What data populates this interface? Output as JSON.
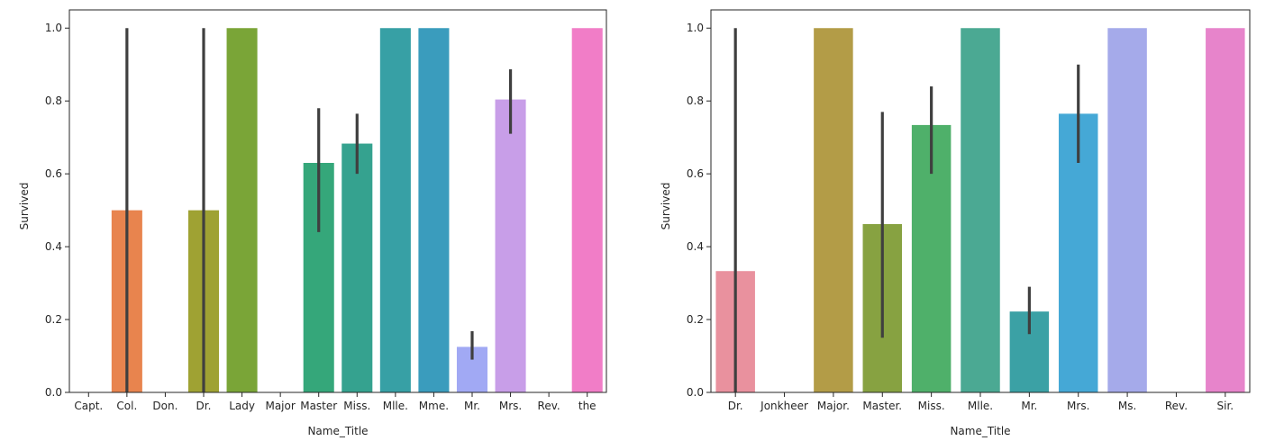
{
  "chart_data": [
    {
      "type": "bar",
      "xlabel": "Name_Title",
      "ylabel": "Survived",
      "ylim": [
        0,
        1.05
      ],
      "yticks": [
        "0.0",
        "0.2",
        "0.4",
        "0.6",
        "0.8",
        "1.0"
      ],
      "categories": [
        "Capt.",
        "Col.",
        "Don.",
        "Dr.",
        "Lady",
        "Major",
        "Master",
        "Miss.",
        "Mlle.",
        "Mme.",
        "Mr.",
        "Mrs.",
        "Rev.",
        "the"
      ],
      "values": [
        0.0,
        0.5,
        0.0,
        0.5,
        1.0,
        0.0,
        0.63,
        0.683,
        1.0,
        1.0,
        0.125,
        0.804,
        0.0,
        1.0
      ],
      "ci_low": [
        null,
        0.0,
        null,
        0.0,
        null,
        null,
        0.44,
        0.6,
        null,
        null,
        0.09,
        0.71,
        null,
        null
      ],
      "ci_high": [
        null,
        1.0,
        null,
        1.0,
        null,
        null,
        0.78,
        0.765,
        null,
        null,
        0.168,
        0.887,
        null,
        null
      ],
      "colors": [
        "#f77189",
        "#e8844e",
        "#c69532",
        "#9fa233",
        "#7aa537",
        "#51a93c",
        "#35a77a",
        "#35a28f",
        "#37a0a5",
        "#3a9cbd",
        "#a1a9f4",
        "#c89ee8",
        "#e48dcd",
        "#f17dc7"
      ]
    },
    {
      "type": "bar",
      "xlabel": "Name_Title",
      "ylabel": "Survived",
      "ylim": [
        0,
        1.05
      ],
      "yticks": [
        "0.0",
        "0.2",
        "0.4",
        "0.6",
        "0.8",
        "1.0"
      ],
      "categories": [
        "Dr.",
        "Jonkheer",
        "Major.",
        "Master.",
        "Miss.",
        "Mlle.",
        "Mr.",
        "Mrs.",
        "Ms.",
        "Rev.",
        "Sir."
      ],
      "values": [
        0.333,
        0.0,
        1.0,
        0.462,
        0.734,
        1.0,
        0.222,
        0.765,
        1.0,
        0.0,
        1.0
      ],
      "ci_low": [
        0.0,
        null,
        null,
        0.15,
        0.6,
        null,
        0.16,
        0.63,
        null,
        null,
        null
      ],
      "ci_high": [
        1.0,
        null,
        null,
        0.77,
        0.84,
        null,
        0.29,
        0.9,
        null,
        null,
        null
      ],
      "colors": [
        "#e9919e",
        "#d79e4b",
        "#b39c47",
        "#87a241",
        "#4fb06a",
        "#4ba993",
        "#3ba1a5",
        "#45a8d6",
        "#a5aaea",
        "#d797e3",
        "#e784cb"
      ]
    }
  ]
}
